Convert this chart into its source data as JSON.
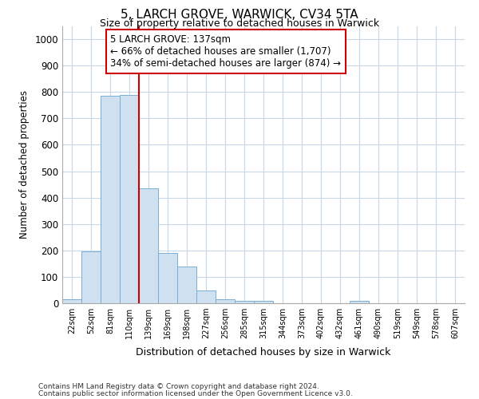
{
  "title1": "5, LARCH GROVE, WARWICK, CV34 5TA",
  "title2": "Size of property relative to detached houses in Warwick",
  "xlabel": "Distribution of detached houses by size in Warwick",
  "ylabel": "Number of detached properties",
  "bar_labels": [
    "22sqm",
    "52sqm",
    "81sqm",
    "110sqm",
    "139sqm",
    "169sqm",
    "198sqm",
    "227sqm",
    "256sqm",
    "285sqm",
    "315sqm",
    "344sqm",
    "373sqm",
    "402sqm",
    "432sqm",
    "461sqm",
    "490sqm",
    "519sqm",
    "549sqm",
    "578sqm",
    "607sqm"
  ],
  "bar_values": [
    15,
    195,
    785,
    790,
    435,
    190,
    140,
    48,
    15,
    10,
    10,
    0,
    0,
    0,
    0,
    8,
    0,
    0,
    0,
    0,
    0
  ],
  "bar_color": "#cfe0f0",
  "bar_edge_color": "#7aafd4",
  "vline_color": "#cc0000",
  "annotation_line1": "5 LARCH GROVE: 137sqm",
  "annotation_line2": "← 66% of detached houses are smaller (1,707)",
  "annotation_line3": "34% of semi-detached houses are larger (874) →",
  "annotation_box_color": "#ffffff",
  "annotation_box_edge": "#cc0000",
  "ylim": [
    0,
    1050
  ],
  "yticks": [
    0,
    100,
    200,
    300,
    400,
    500,
    600,
    700,
    800,
    900,
    1000
  ],
  "footnote1": "Contains HM Land Registry data © Crown copyright and database right 2024.",
  "footnote2": "Contains public sector information licensed under the Open Government Licence v3.0.",
  "grid_color": "#c8d8e8",
  "bg_color": "#ffffff",
  "fig_bg_color": "#ffffff"
}
